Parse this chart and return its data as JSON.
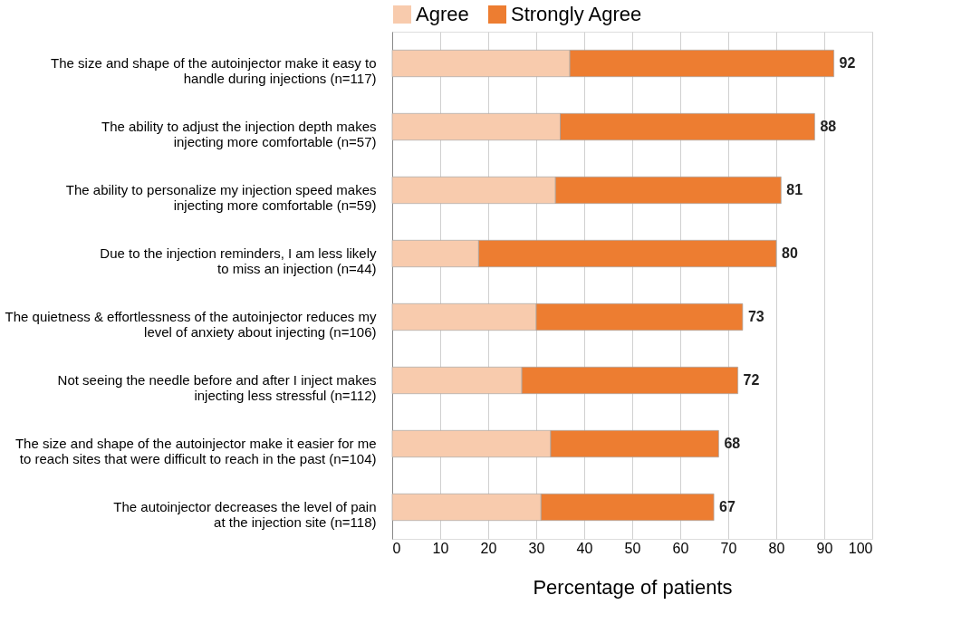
{
  "chart_data": {
    "type": "bar",
    "orientation": "horizontal",
    "stacked": true,
    "categories": [
      "The size and shape of the autoinjector make it easy to\nhandle during injections (n=117)",
      "The ability to adjust the injection depth makes\ninjecting more comfortable (n=57)",
      "The ability to personalize my injection speed makes\ninjecting more comfortable (n=59)",
      "Due to the injection reminders, I am less likely\nto miss an injection (n=44)",
      "The quietness & effortlessness of the autoinjector reduces my\nlevel of anxiety about injecting (n=106)",
      "Not seeing the needle before and after I inject makes\ninjecting less stressful (n=112)",
      "The size and shape of the autoinjector make it easier for me\nto reach sites that were difficult to reach in the past (n=104)",
      "The autoinjector decreases the level of pain\nat the injection site (n=118)"
    ],
    "series": [
      {
        "name": "Agree",
        "color": "#f8cbad",
        "values": [
          37,
          35,
          34,
          18,
          30,
          27,
          33,
          31
        ]
      },
      {
        "name": "Strongly Agree",
        "color": "#ed7d31",
        "values": [
          55,
          53,
          47,
          62,
          43,
          45,
          35,
          36
        ]
      }
    ],
    "totals": [
      "92",
      "88",
      "81",
      "80",
      "73",
      "72",
      "68",
      "67"
    ],
    "xlabel": "Percentage of patients",
    "xlim": [
      0,
      100
    ],
    "xticks": [
      0,
      10,
      20,
      30,
      40,
      50,
      60,
      70,
      80,
      90,
      100
    ],
    "grid": "x",
    "legend": "top"
  }
}
